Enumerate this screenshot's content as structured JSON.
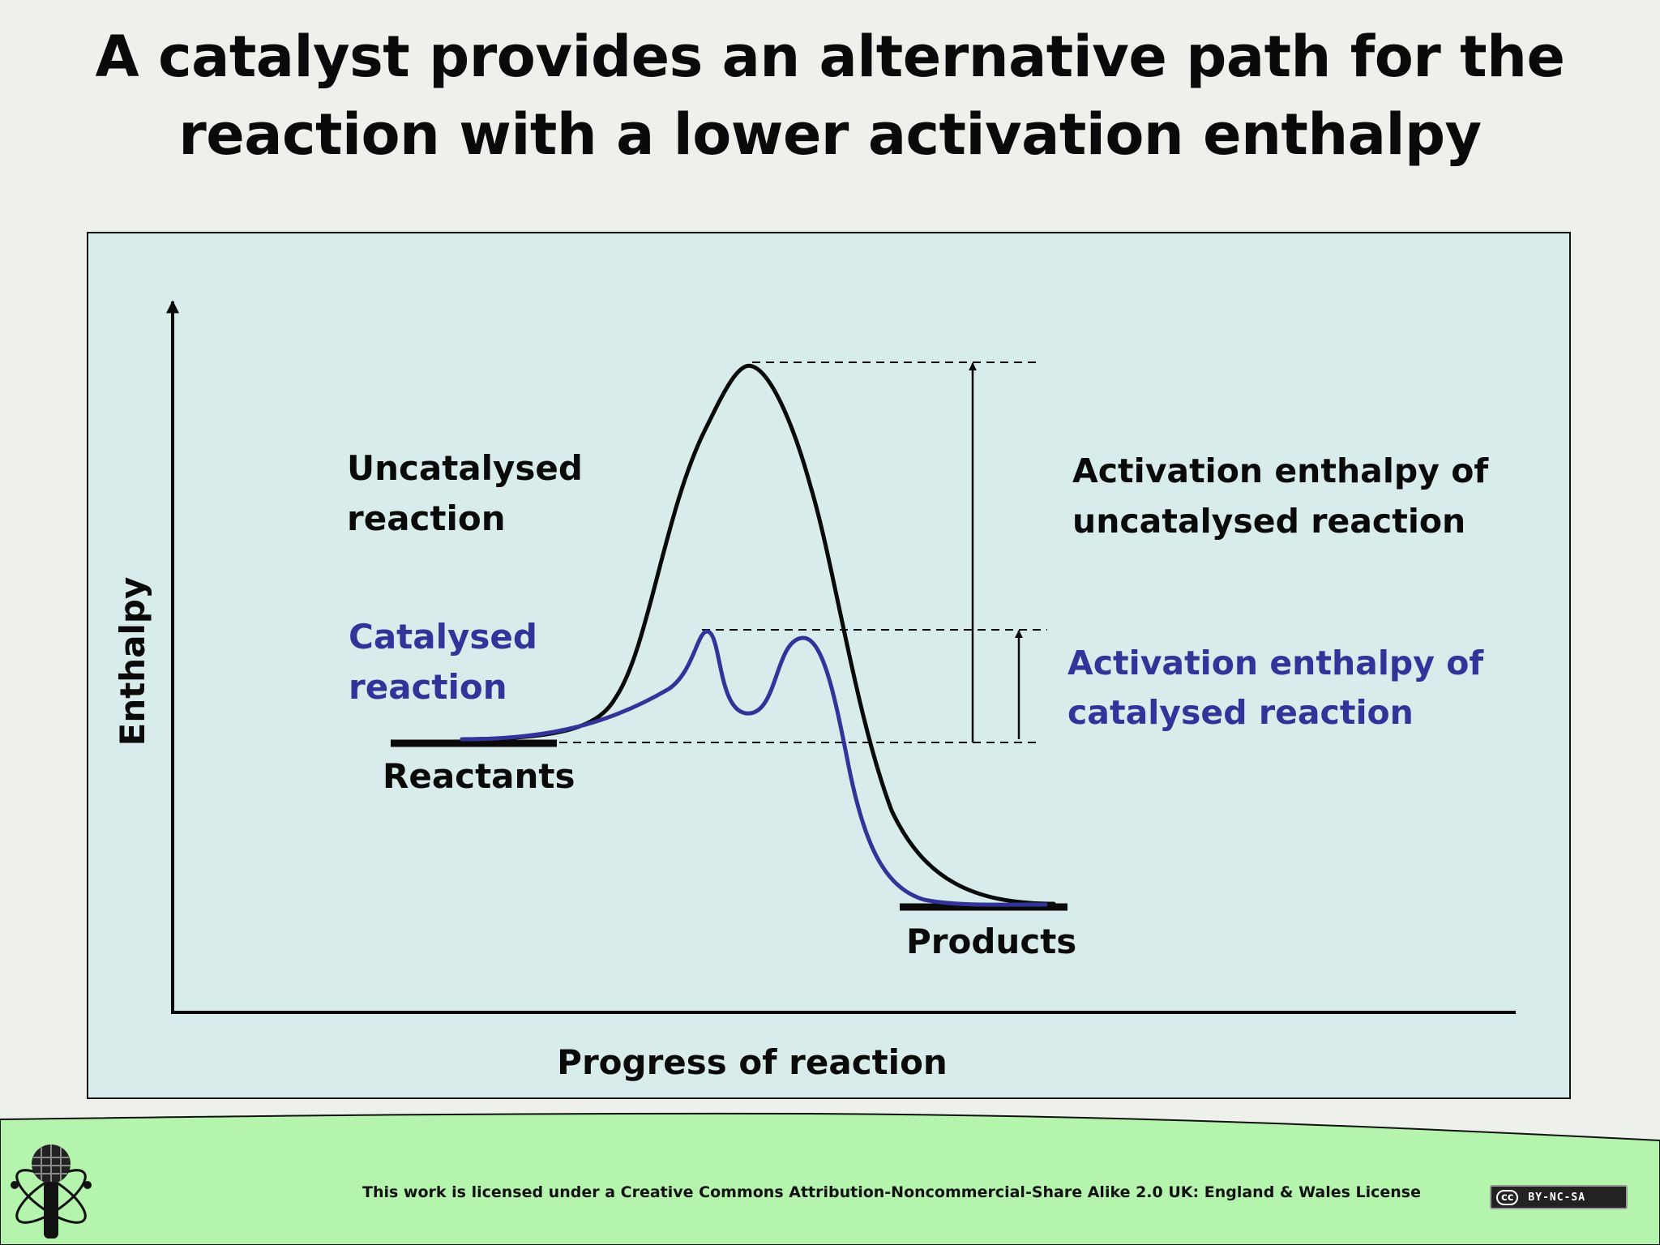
{
  "title": {
    "line1": "A catalyst provides an alternative path for the",
    "line2": "reaction with a lower activation enthalpy"
  },
  "diagram": {
    "y_axis_label": "Enthalpy",
    "x_axis_label": "Progress of reaction",
    "reactants_label": "Reactants",
    "products_label": "Products",
    "uncatalysed": {
      "line1": "Uncatalysed",
      "line2": "reaction",
      "color": "#0a0a0a"
    },
    "catalysed": {
      "line1": "Catalysed",
      "line2": "reaction",
      "color": "#33349a"
    },
    "ea_uncatalysed": {
      "line1": "Activation enthalpy of",
      "line2": "uncatalysed reaction"
    },
    "ea_catalysed": {
      "line1": "Activation enthalpy of",
      "line2": "catalysed reaction"
    }
  },
  "colors": {
    "panel_bg": "#d8ecec",
    "footer_bg": "#b4f4ac",
    "catalysed": "#33349a",
    "uncatalysed": "#0a0a0a"
  },
  "footer": {
    "license": "This work is licensed under a Creative Commons Attribution-Noncommercial-Share Alike 2.0 UK: England & Wales License",
    "badge_cc": "cc",
    "badge_terms": "BY-NC-SA",
    "logo_icon": "microphone-atom-logo"
  }
}
